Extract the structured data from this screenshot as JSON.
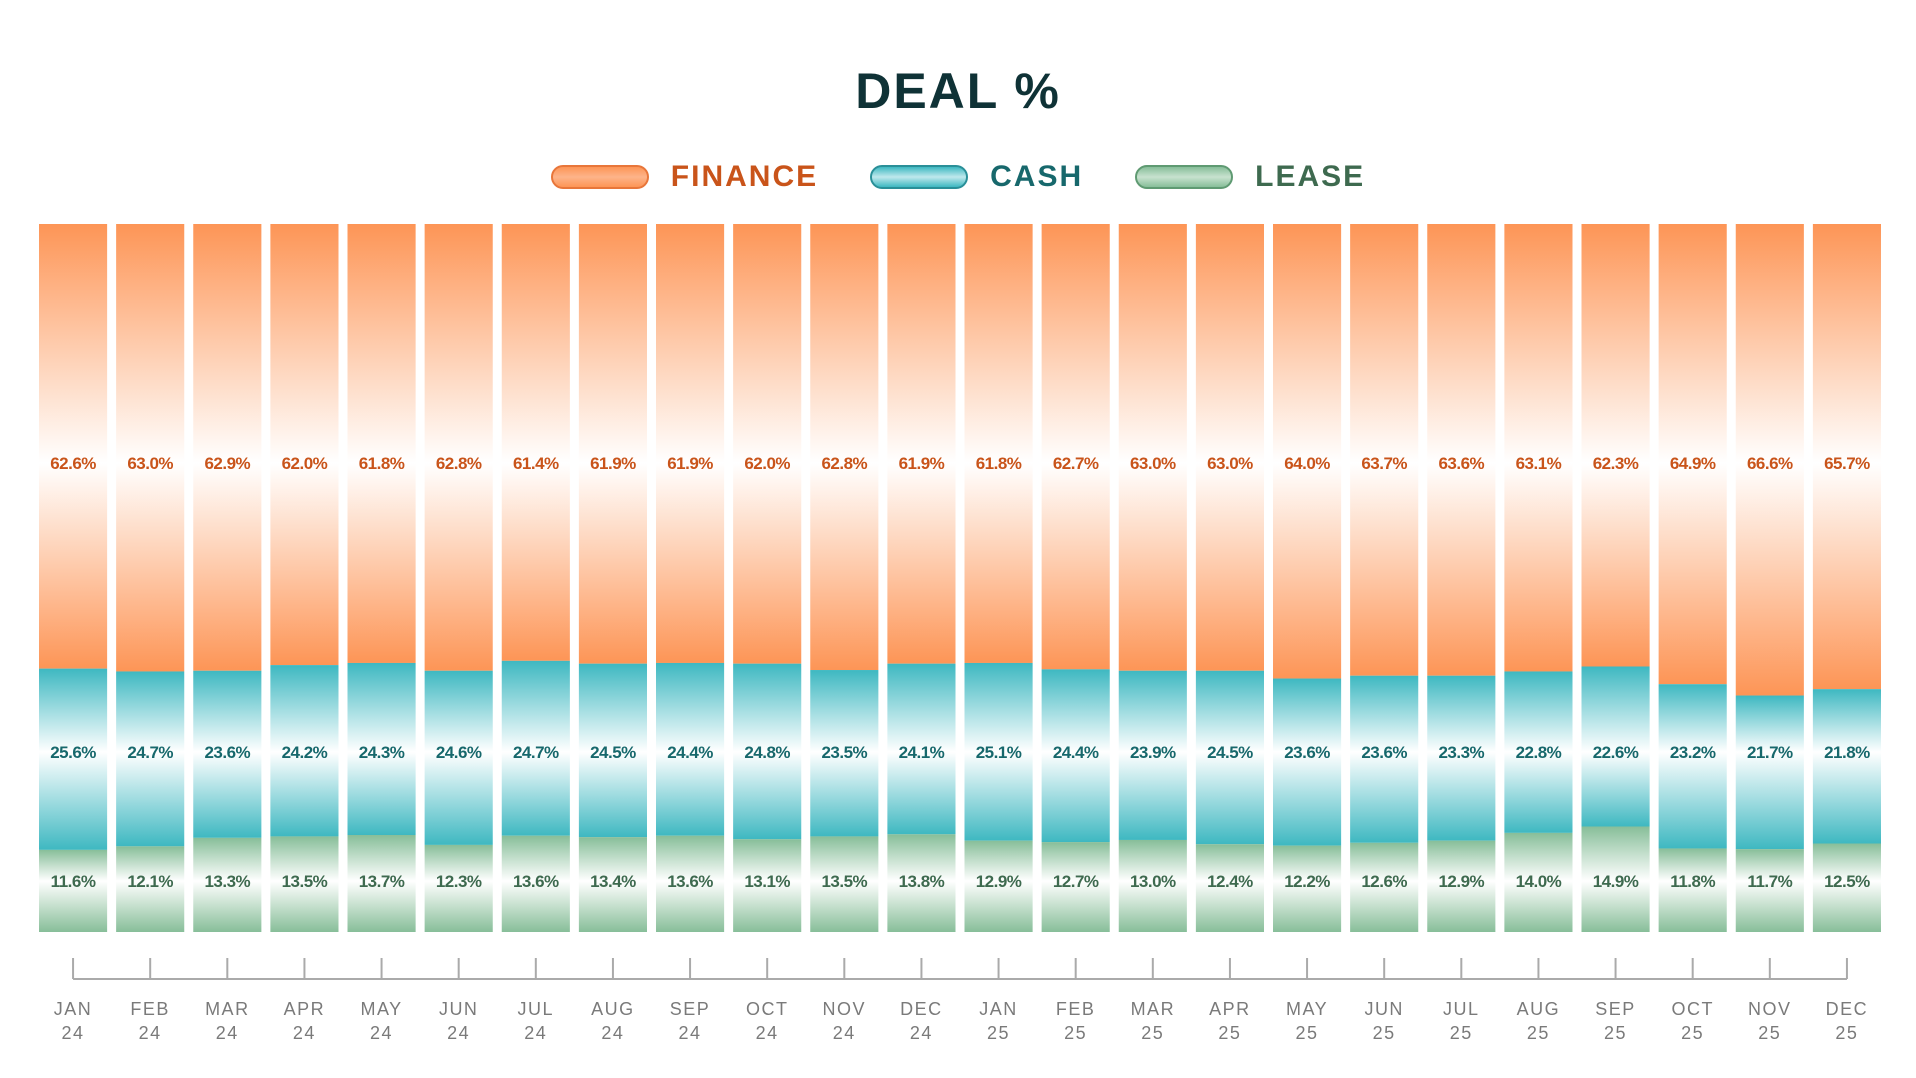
{
  "chart_data": {
    "type": "bar",
    "stacked": true,
    "normalized_percent": true,
    "title": "DEAL %",
    "legend_position": "top",
    "categories": [
      [
        "JAN",
        "24"
      ],
      [
        "FEB",
        "24"
      ],
      [
        "MAR",
        "24"
      ],
      [
        "APR",
        "24"
      ],
      [
        "MAY",
        "24"
      ],
      [
        "JUN",
        "24"
      ],
      [
        "JUL",
        "24"
      ],
      [
        "AUG",
        "24"
      ],
      [
        "SEP",
        "24"
      ],
      [
        "OCT",
        "24"
      ],
      [
        "NOV",
        "24"
      ],
      [
        "DEC",
        "24"
      ],
      [
        "JAN",
        "25"
      ],
      [
        "FEB",
        "25"
      ],
      [
        "MAR",
        "25"
      ],
      [
        "APR",
        "25"
      ],
      [
        "MAY",
        "25"
      ],
      [
        "JUN",
        "25"
      ],
      [
        "JUL",
        "25"
      ],
      [
        "AUG",
        "25"
      ],
      [
        "SEP",
        "25"
      ],
      [
        "OCT",
        "25"
      ],
      [
        "NOV",
        "25"
      ],
      [
        "DEC",
        "25"
      ]
    ],
    "series": [
      {
        "name": "FINANCE",
        "color": "#fd9556",
        "label_color": "#c9541a",
        "values": [
          62.6,
          63.0,
          62.9,
          62.0,
          61.8,
          62.8,
          61.4,
          61.9,
          61.9,
          62.0,
          62.8,
          61.9,
          61.8,
          62.7,
          63.0,
          63.0,
          64.0,
          63.7,
          63.6,
          63.1,
          62.3,
          64.9,
          66.6,
          65.7
        ]
      },
      {
        "name": "CASH",
        "color": "#3eb8c1",
        "label_color": "#17686c",
        "values": [
          25.6,
          24.7,
          23.6,
          24.2,
          24.3,
          24.6,
          24.7,
          24.5,
          24.4,
          24.8,
          23.5,
          24.1,
          25.1,
          24.4,
          23.9,
          24.5,
          23.6,
          23.6,
          23.3,
          22.8,
          22.6,
          23.2,
          21.7,
          21.8
        ]
      },
      {
        "name": "LEASE",
        "color": "#87be99",
        "label_color": "#3e6a4f",
        "values": [
          11.6,
          12.1,
          13.3,
          13.5,
          13.7,
          12.3,
          13.6,
          13.4,
          13.6,
          13.1,
          13.5,
          13.8,
          12.9,
          12.7,
          13.0,
          12.4,
          12.2,
          12.6,
          12.9,
          14.0,
          14.9,
          11.8,
          11.7,
          12.5
        ]
      }
    ],
    "ylim": [
      0,
      100
    ],
    "grid": false,
    "title_color": "#0f3236",
    "axis_color": "#aaaaaa",
    "tick_label_color": "#7a7a7a"
  }
}
